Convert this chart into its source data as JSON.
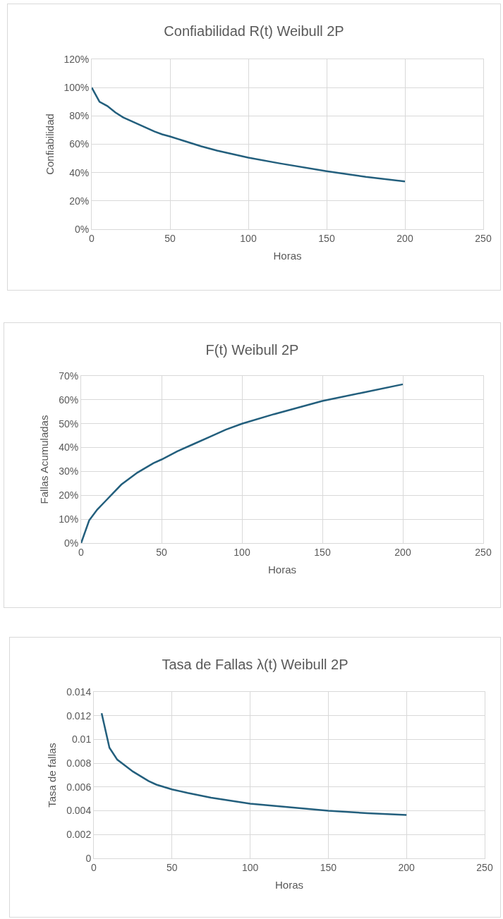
{
  "chart_data": [
    {
      "type": "line",
      "title": "Confiabilidad R(t) Weibull 2P",
      "xlabel": "Horas",
      "ylabel": "Confiabilidad",
      "color": "#235f7d",
      "x": [
        0,
        5,
        10,
        15,
        20,
        25,
        30,
        35,
        40,
        45,
        50,
        60,
        70,
        80,
        90,
        100,
        120,
        150,
        175,
        200
      ],
      "values": [
        100,
        90,
        87,
        82.5,
        79,
        76.5,
        74,
        71.5,
        69,
        67,
        65.5,
        62,
        58.5,
        55.5,
        53,
        50.5,
        46.5,
        41,
        37,
        33.7
      ],
      "xlim": [
        0,
        250
      ],
      "xticks": [
        0,
        50,
        100,
        150,
        200,
        250
      ],
      "ylim": [
        0,
        120
      ],
      "yticks": [
        {
          "value": 0,
          "label": "0%"
        },
        {
          "value": 20,
          "label": "20%"
        },
        {
          "value": 40,
          "label": "40%"
        },
        {
          "value": 60,
          "label": "60%"
        },
        {
          "value": 80,
          "label": "80%"
        },
        {
          "value": 100,
          "label": "100%"
        },
        {
          "value": 120,
          "label": "120%"
        }
      ],
      "grid": true
    },
    {
      "type": "line",
      "title": "F(t) Weibull 2P",
      "xlabel": "Horas",
      "ylabel": "Fallas Acumuladas",
      "color": "#235f7d",
      "x": [
        0,
        5,
        10,
        15,
        20,
        25,
        30,
        35,
        40,
        45,
        50,
        60,
        70,
        80,
        90,
        100,
        120,
        150,
        175,
        200
      ],
      "values": [
        0,
        9.5,
        14,
        17.5,
        21,
        24.5,
        27,
        29.5,
        31.5,
        33.5,
        35,
        38.5,
        41.5,
        44.5,
        47.5,
        50,
        54,
        59.5,
        63,
        66.5
      ],
      "xlim": [
        0,
        250
      ],
      "xticks": [
        0,
        50,
        100,
        150,
        200,
        250
      ],
      "ylim": [
        0,
        70
      ],
      "yticks": [
        {
          "value": 0,
          "label": "0%"
        },
        {
          "value": 10,
          "label": "10%"
        },
        {
          "value": 20,
          "label": "20%"
        },
        {
          "value": 30,
          "label": "30%"
        },
        {
          "value": 40,
          "label": "40%"
        },
        {
          "value": 50,
          "label": "50%"
        },
        {
          "value": 60,
          "label": "60%"
        },
        {
          "value": 70,
          "label": "70%"
        }
      ],
      "grid": true
    },
    {
      "type": "line",
      "title": "Tasa de Fallas λ(t) Weibull 2P",
      "xlabel": "Horas",
      "ylabel": "Tasa de fallas",
      "color": "#235f7d",
      "x": [
        5,
        10,
        15,
        20,
        25,
        30,
        35,
        40,
        50,
        60,
        75,
        100,
        125,
        150,
        175,
        200
      ],
      "values": [
        0.0122,
        0.0093,
        0.0083,
        0.0078,
        0.0073,
        0.0069,
        0.0065,
        0.0062,
        0.0058,
        0.0055,
        0.0051,
        0.0046,
        0.0043,
        0.004,
        0.0038,
        0.00365
      ],
      "xlim": [
        0,
        250
      ],
      "xticks": [
        0,
        50,
        100,
        150,
        200,
        250
      ],
      "ylim": [
        0,
        0.014
      ],
      "yticks": [
        0,
        0.002,
        0.004,
        0.006,
        0.008,
        0.01,
        0.012,
        0.014
      ],
      "grid": true
    }
  ]
}
